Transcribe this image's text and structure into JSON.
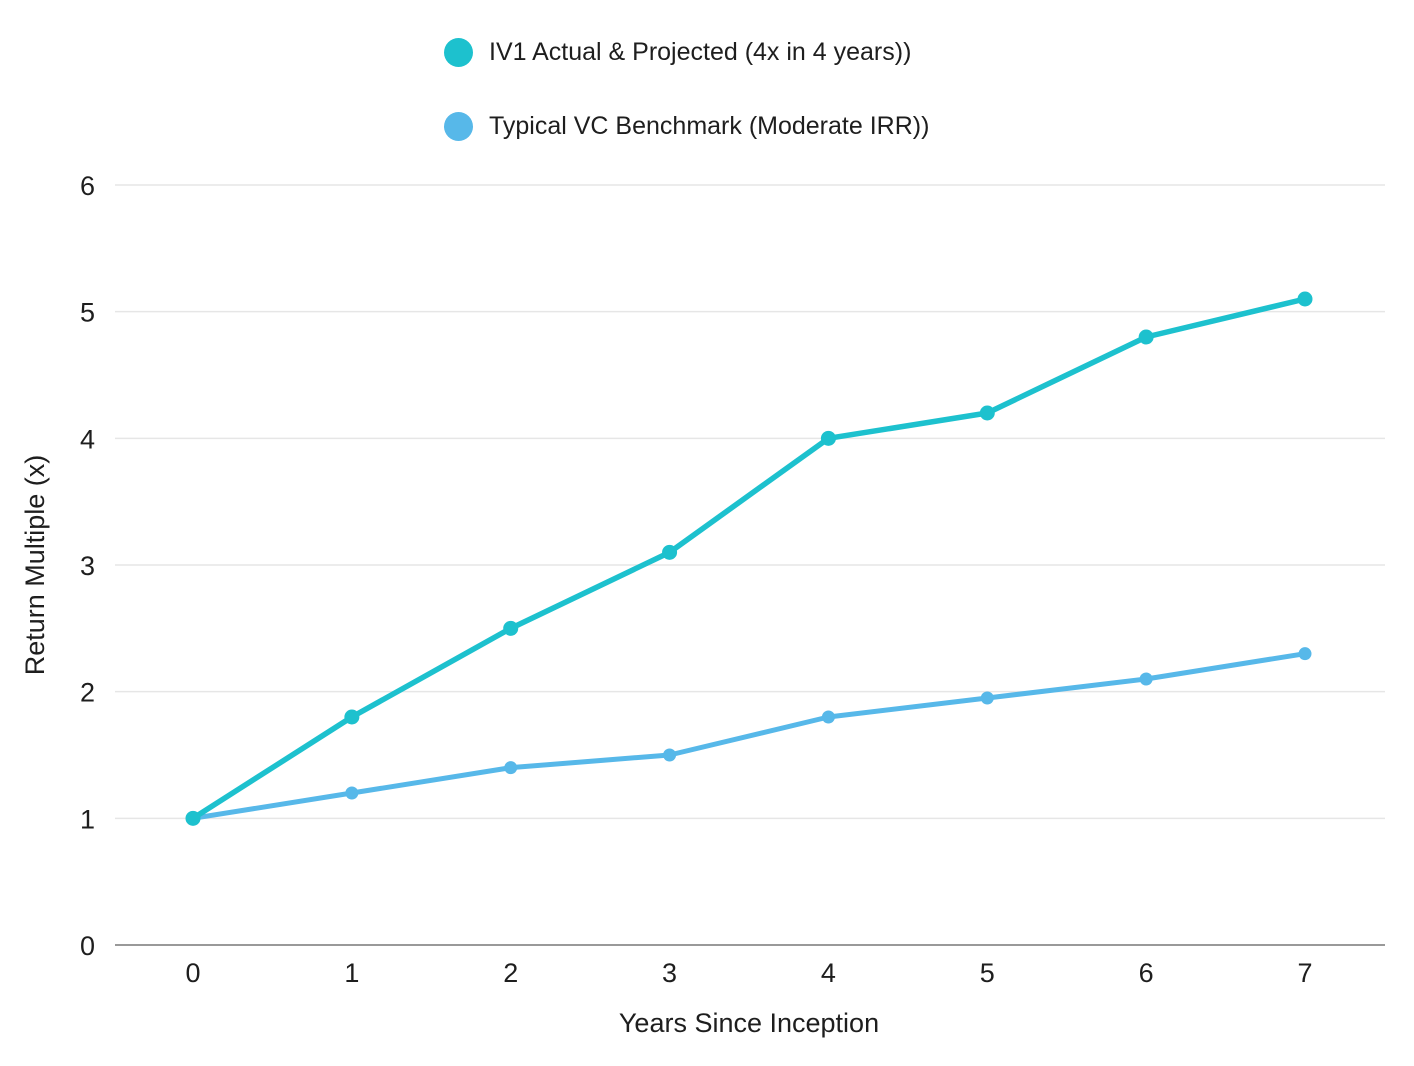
{
  "chart_data": {
    "type": "line",
    "x": [
      0,
      1,
      2,
      3,
      4,
      5,
      6,
      7
    ],
    "series": [
      {
        "name": "IV1 Actual & Projected (4x in 4 years))",
        "color": "#1dc1ce",
        "values": [
          1.0,
          1.8,
          2.5,
          3.1,
          4.0,
          4.2,
          4.8,
          5.1
        ]
      },
      {
        "name": "Typical VC Benchmark (Moderate IRR))",
        "color": "#57b8e9",
        "values": [
          1.0,
          1.2,
          1.4,
          1.5,
          1.8,
          1.95,
          2.1,
          2.3
        ]
      }
    ],
    "title": "",
    "xlabel": "Years Since Inception",
    "ylabel": "Return Multiple (x)",
    "xticks": [
      "0",
      "1",
      "2",
      "3",
      "4",
      "5",
      "6",
      "7"
    ],
    "yticks": [
      0,
      1,
      2,
      3,
      4,
      5,
      6
    ],
    "ylim": [
      0,
      6
    ],
    "grid": true,
    "legend_position": "top-center",
    "colors": {
      "gridline": "#e6e6e6",
      "axis_line": "#999999",
      "text": "#1e1e1e"
    }
  }
}
